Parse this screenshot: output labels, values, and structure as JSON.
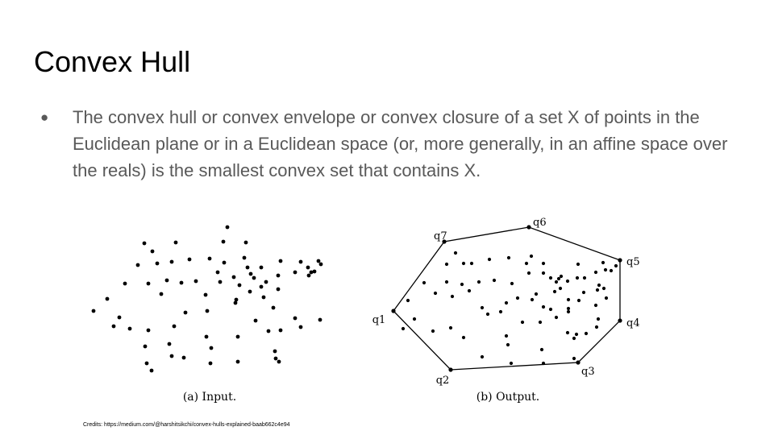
{
  "slide": {
    "title": "Convex Hull",
    "bullet": "The convex hull or convex envelope or convex closure of a set X of points in the Euclidean plane or in a Euclidean space (or, more generally, in an affine space over the reals) is the smallest convex set that contains X."
  },
  "figure": {
    "input_caption": "(a) Input.",
    "output_caption": "(b) Output.",
    "hull_labels": [
      "q1",
      "q2",
      "q3",
      "q4",
      "q5",
      "q6",
      "q7"
    ]
  },
  "credits": "Credits: https://medium.com/@harshitsikchi/convex-hulls-explained-baab662c4e94"
}
